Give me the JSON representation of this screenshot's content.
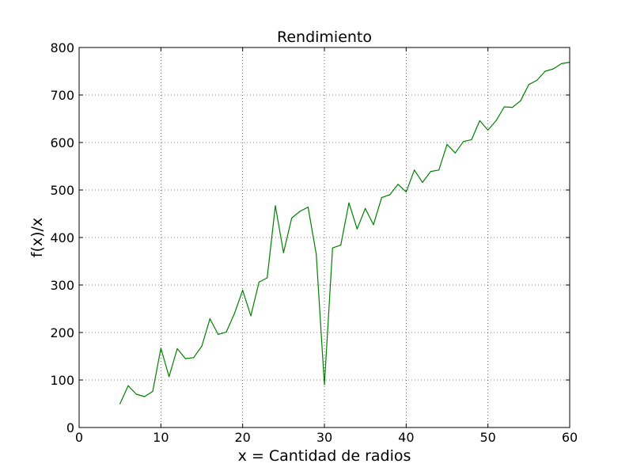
{
  "chart_data": {
    "type": "line",
    "title": "Rendimiento",
    "xlabel": "x = Cantidad de radios",
    "ylabel": "f(x)/x",
    "xlim": [
      0,
      60
    ],
    "ylim": [
      0,
      800
    ],
    "xticks": [
      "0",
      "10",
      "20",
      "30",
      "40",
      "50",
      "60"
    ],
    "yticks": [
      "0",
      "100",
      "200",
      "300",
      "400",
      "500",
      "600",
      "700",
      "800"
    ],
    "grid": true,
    "grid_style": "dotted",
    "series": [
      {
        "color": "#008000",
        "x": [
          5,
          6,
          7,
          8,
          9,
          10,
          11,
          12,
          13,
          14,
          15,
          16,
          17,
          18,
          19,
          20,
          21,
          22,
          23,
          24,
          25,
          26,
          27,
          28,
          29,
          30,
          31,
          32,
          33,
          34,
          35,
          36,
          37,
          38,
          39,
          40,
          41,
          42,
          43,
          44,
          45,
          46,
          47,
          48,
          49,
          50,
          51,
          52,
          53,
          54,
          55,
          56,
          57,
          58,
          59,
          60
        ],
        "y": [
          50,
          88,
          70,
          65,
          76,
          167,
          107,
          166,
          145,
          147,
          171,
          229,
          196,
          201,
          240,
          289,
          235,
          306,
          315,
          467,
          368,
          441,
          455,
          464,
          365,
          90,
          378,
          384,
          473,
          418,
          461,
          427,
          484,
          490,
          512,
          496,
          542,
          516,
          539,
          542,
          596,
          578,
          602,
          606,
          646,
          626,
          646,
          675,
          674,
          688,
          722,
          731,
          750,
          755,
          766,
          769
        ]
      }
    ]
  }
}
